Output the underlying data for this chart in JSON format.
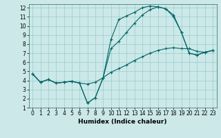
{
  "xlabel": "Humidex (Indice chaleur)",
  "background_color": "#cce8e8",
  "grid_color": "#99cccc",
  "line_color": "#006666",
  "xlim": [
    -0.5,
    23.5
  ],
  "ylim": [
    1,
    12.4
  ],
  "xticks": [
    0,
    1,
    2,
    3,
    4,
    5,
    6,
    7,
    8,
    9,
    10,
    11,
    12,
    13,
    14,
    15,
    16,
    17,
    18,
    19,
    20,
    21,
    22,
    23
  ],
  "yticks": [
    1,
    2,
    3,
    4,
    5,
    6,
    7,
    8,
    9,
    10,
    11,
    12
  ],
  "line1_x": [
    0,
    1,
    2,
    3,
    4,
    5,
    6,
    7,
    8,
    9,
    10,
    11,
    12,
    13,
    14,
    15,
    16,
    17,
    18,
    19,
    20,
    21,
    22,
    23
  ],
  "line1_y": [
    4.7,
    3.8,
    4.1,
    3.7,
    3.8,
    3.9,
    3.7,
    1.5,
    2.1,
    4.3,
    8.5,
    10.7,
    11.1,
    11.5,
    12.0,
    12.2,
    12.1,
    11.9,
    11.2,
    9.3,
    7.0,
    6.8,
    7.1,
    7.3
  ],
  "line2_x": [
    0,
    1,
    2,
    3,
    4,
    5,
    6,
    7,
    8,
    9,
    10,
    11,
    12,
    13,
    14,
    15,
    16,
    17,
    18,
    19,
    20,
    21,
    22,
    23
  ],
  "line2_y": [
    4.7,
    3.8,
    4.1,
    3.7,
    3.8,
    3.9,
    3.7,
    1.5,
    2.1,
    4.3,
    7.5,
    8.3,
    9.3,
    10.3,
    11.2,
    11.8,
    12.1,
    11.9,
    11.0,
    9.3,
    7.0,
    6.8,
    7.1,
    7.3
  ],
  "line3_x": [
    0,
    1,
    2,
    3,
    4,
    5,
    6,
    7,
    8,
    9,
    10,
    11,
    12,
    13,
    14,
    15,
    16,
    17,
    18,
    19,
    20,
    21,
    22,
    23
  ],
  "line3_y": [
    4.7,
    3.8,
    4.1,
    3.7,
    3.8,
    3.9,
    3.7,
    3.6,
    3.8,
    4.3,
    4.9,
    5.3,
    5.7,
    6.2,
    6.6,
    7.0,
    7.3,
    7.5,
    7.6,
    7.5,
    7.5,
    7.2,
    7.1,
    7.3
  ],
  "tick_fontsize": 5.5,
  "xlabel_fontsize": 6.5
}
